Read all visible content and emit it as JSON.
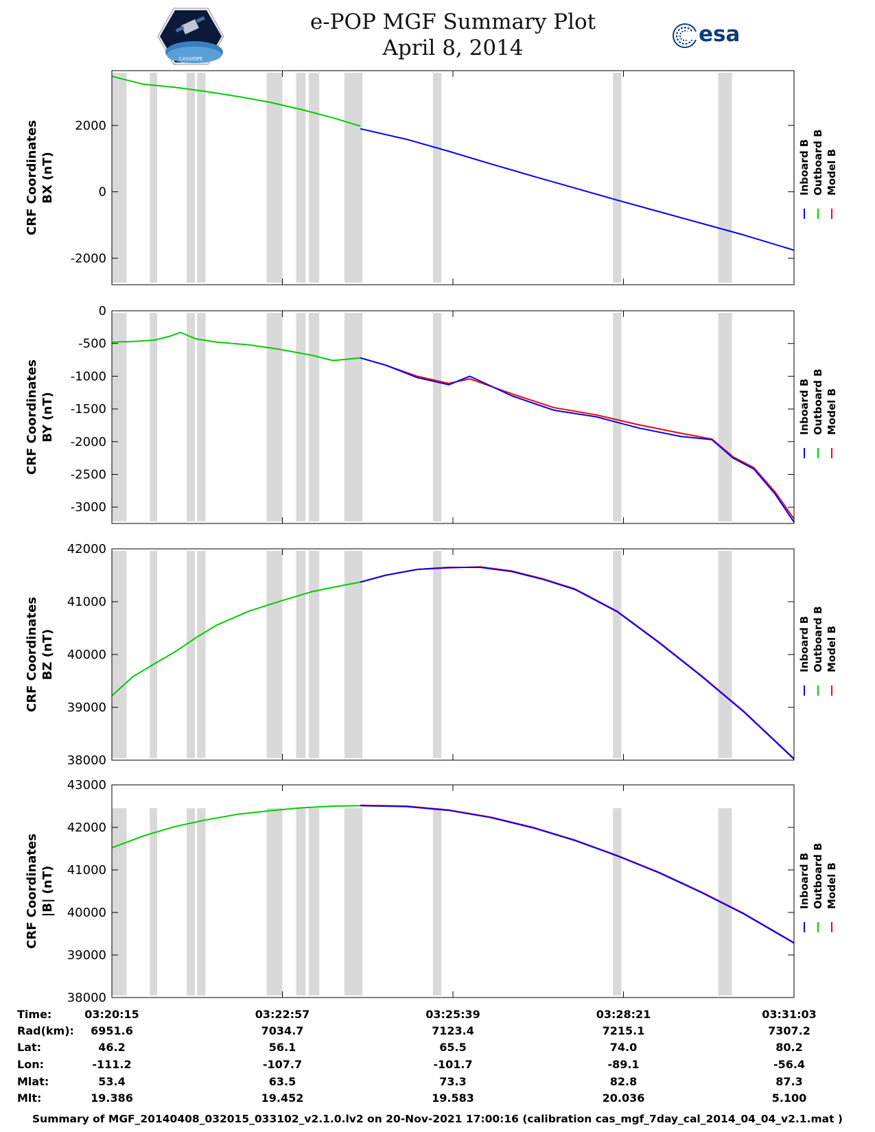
{
  "header": {
    "title_line1": "e-POP MGF Summary Plot",
    "title_line2": "April 8, 2014",
    "esa_text": "esa",
    "logo_text": "CASSIOPE"
  },
  "footer": "Summary of MGF_20140408_032015_033102_v2.1.0.lv2 on 20-Nov-2021 17:00:16 (calibration cas_mgf_7day_cal_2014_04_04_v2.1.mat )",
  "colors": {
    "inboard": "#0000ff",
    "outboard": "#00cc00",
    "model": "#ff0000",
    "gap": "#d9d9d9"
  },
  "legend": [
    "Inboard B",
    "Outboard B",
    "Model B"
  ],
  "chart_data": [
    {
      "type": "line",
      "ylabel1": "CRF Coordinates",
      "ylabel2": "BX (nT)",
      "ylim": [
        -2800,
        3650
      ],
      "yticks": [
        -2000,
        0,
        2000
      ],
      "xlim": [
        0,
        648
      ],
      "series": [
        {
          "name": "Outboard B",
          "x": [
            0,
            30,
            60,
            90,
            120,
            150,
            180,
            210,
            236
          ],
          "values": [
            3480,
            3240,
            3150,
            3020,
            2870,
            2700,
            2480,
            2230,
            1980
          ]
        },
        {
          "name": "Inboard B",
          "x": [
            236,
            280,
            320,
            360,
            400,
            440,
            480,
            520,
            560,
            600,
            648
          ],
          "values": [
            1900,
            1580,
            1220,
            840,
            470,
            110,
            -250,
            -600,
            -950,
            -1300,
            -1760
          ]
        }
      ]
    },
    {
      "type": "line",
      "ylabel1": "CRF Coordinates",
      "ylabel2": "BY (nT)",
      "ylim": [
        -3250,
        0
      ],
      "yticks": [
        -3000,
        -2500,
        -2000,
        -1500,
        -1000,
        -500,
        0
      ],
      "xlim": [
        0,
        648
      ],
      "series": [
        {
          "name": "Outboard B",
          "x": [
            0,
            20,
            40,
            55,
            65,
            80,
            100,
            130,
            160,
            190,
            210,
            236
          ],
          "values": [
            -480,
            -470,
            -450,
            -390,
            -330,
            -430,
            -480,
            -520,
            -590,
            -680,
            -760,
            -720
          ]
        },
        {
          "name": "Model B",
          "x": [
            236,
            260,
            290,
            320,
            340,
            380,
            420,
            460,
            500,
            540,
            570,
            590,
            610,
            630,
            648
          ],
          "values": [
            -720,
            -830,
            -1000,
            -1110,
            -1040,
            -1270,
            -1480,
            -1590,
            -1740,
            -1870,
            -1960,
            -2230,
            -2400,
            -2770,
            -3180
          ]
        },
        {
          "name": "Inboard B",
          "x": [
            236,
            260,
            290,
            320,
            340,
            380,
            420,
            460,
            500,
            540,
            570,
            590,
            610,
            630,
            648
          ],
          "values": [
            -720,
            -830,
            -1020,
            -1130,
            -1000,
            -1300,
            -1520,
            -1620,
            -1790,
            -1920,
            -1970,
            -2250,
            -2420,
            -2800,
            -3230
          ]
        }
      ]
    },
    {
      "type": "line",
      "ylabel1": "CRF Coordinates",
      "ylabel2": "BZ (nT)",
      "ylim": [
        38000,
        42000
      ],
      "yticks": [
        38000,
        39000,
        40000,
        41000,
        42000
      ],
      "xlim": [
        0,
        648
      ],
      "series": [
        {
          "name": "Outboard B",
          "x": [
            0,
            20,
            40,
            60,
            80,
            100,
            130,
            160,
            190,
            220,
            236
          ],
          "values": [
            39220,
            39580,
            39820,
            40050,
            40320,
            40560,
            40820,
            41010,
            41190,
            41310,
            41370
          ]
        },
        {
          "name": "Model B",
          "x": [
            236,
            260,
            290,
            320,
            350,
            380,
            410,
            440,
            480,
            520,
            560,
            600,
            648
          ],
          "values": [
            41370,
            41500,
            41610,
            41640,
            41660,
            41580,
            41430,
            41240,
            40820,
            40230,
            39600,
            38930,
            38030
          ]
        },
        {
          "name": "Inboard B",
          "x": [
            236,
            260,
            290,
            320,
            350,
            380,
            410,
            440,
            480,
            520,
            560,
            600,
            648
          ],
          "values": [
            41370,
            41500,
            41610,
            41650,
            41650,
            41570,
            41420,
            41230,
            40810,
            40220,
            39590,
            38920,
            38020
          ]
        }
      ]
    },
    {
      "type": "line",
      "ylabel1": "CRF Coordinates",
      "ylabel2": "|B| (nT)",
      "ylim": [
        38000,
        43000
      ],
      "yticks": [
        38000,
        39000,
        40000,
        41000,
        42000,
        43000
      ],
      "xlim": [
        0,
        648
      ],
      "series": [
        {
          "name": "Outboard B",
          "x": [
            0,
            30,
            60,
            90,
            120,
            150,
            180,
            210,
            236
          ],
          "values": [
            41520,
            41800,
            42020,
            42180,
            42310,
            42390,
            42460,
            42500,
            42510
          ]
        },
        {
          "name": "Model B",
          "x": [
            236,
            280,
            320,
            360,
            400,
            440,
            480,
            520,
            560,
            600,
            648
          ],
          "values": [
            42520,
            42500,
            42410,
            42240,
            42000,
            41700,
            41340,
            40940,
            40480,
            39980,
            39290
          ]
        },
        {
          "name": "Inboard B",
          "x": [
            236,
            280,
            320,
            360,
            400,
            440,
            480,
            520,
            560,
            600,
            648
          ],
          "values": [
            42510,
            42490,
            42400,
            42230,
            41990,
            41690,
            41330,
            40930,
            40470,
            39970,
            39280
          ]
        }
      ]
    }
  ],
  "gaps": [
    [
      0,
      14
    ],
    [
      36,
      43
    ],
    [
      71,
      79
    ],
    [
      81,
      89
    ],
    [
      147,
      162
    ],
    [
      175,
      184
    ],
    [
      187,
      197
    ],
    [
      221,
      238
    ],
    [
      305,
      313
    ],
    [
      476,
      484
    ],
    [
      576,
      589
    ]
  ],
  "orbit_table": {
    "row_labels": [
      "Time:",
      "Rad(km):",
      "Lat:",
      "Lon:",
      "Mlat:",
      "Mlt:"
    ],
    "columns": [
      {
        "x": 0,
        "values": [
          "03:20:15",
          "6951.6",
          "46.2",
          "-111.2",
          "53.4",
          "19.386"
        ]
      },
      {
        "x": 162,
        "values": [
          "03:22:57",
          "7034.7",
          "56.1",
          "-107.7",
          "63.5",
          "19.452"
        ]
      },
      {
        "x": 324,
        "values": [
          "03:25:39",
          "7123.4",
          "65.5",
          "-101.7",
          "73.3",
          "19.583"
        ]
      },
      {
        "x": 486,
        "values": [
          "03:28:21",
          "7215.1",
          "74.0",
          "-89.1",
          "82.8",
          "20.036"
        ]
      },
      {
        "x": 648,
        "values": [
          "03:31:03",
          "7307.2",
          "80.2",
          "-56.4",
          "87.3",
          "5.100"
        ]
      }
    ]
  }
}
